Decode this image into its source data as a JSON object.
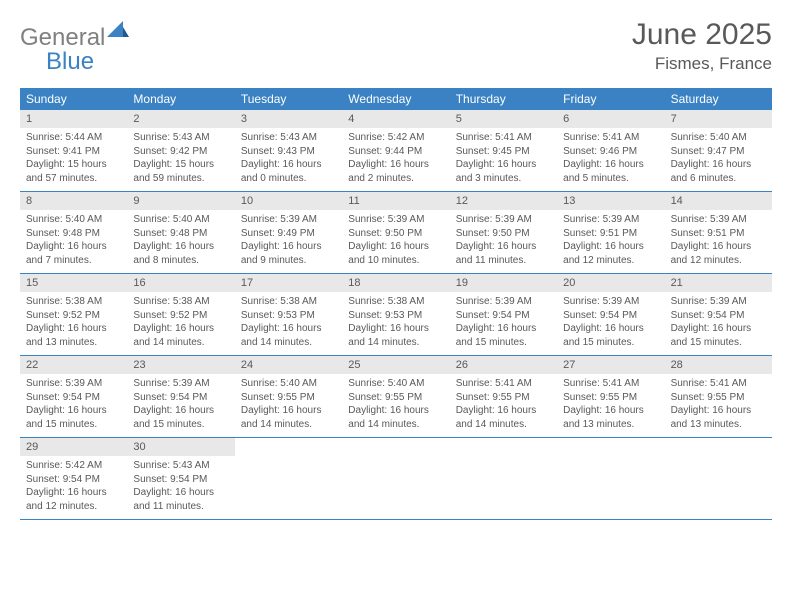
{
  "brand": {
    "part1": "General",
    "part2": "Blue"
  },
  "title": "June 2025",
  "location": "Fismes, France",
  "colors": {
    "header_bg": "#3b82c4",
    "daynum_bg": "#e8e8e8",
    "text": "#595959",
    "page_bg": "#ffffff"
  },
  "weekdays": [
    "Sunday",
    "Monday",
    "Tuesday",
    "Wednesday",
    "Thursday",
    "Friday",
    "Saturday"
  ],
  "weeks": [
    [
      {
        "n": "1",
        "sr": "5:44 AM",
        "ss": "9:41 PM",
        "dl": "15 hours and 57 minutes."
      },
      {
        "n": "2",
        "sr": "5:43 AM",
        "ss": "9:42 PM",
        "dl": "15 hours and 59 minutes."
      },
      {
        "n": "3",
        "sr": "5:43 AM",
        "ss": "9:43 PM",
        "dl": "16 hours and 0 minutes."
      },
      {
        "n": "4",
        "sr": "5:42 AM",
        "ss": "9:44 PM",
        "dl": "16 hours and 2 minutes."
      },
      {
        "n": "5",
        "sr": "5:41 AM",
        "ss": "9:45 PM",
        "dl": "16 hours and 3 minutes."
      },
      {
        "n": "6",
        "sr": "5:41 AM",
        "ss": "9:46 PM",
        "dl": "16 hours and 5 minutes."
      },
      {
        "n": "7",
        "sr": "5:40 AM",
        "ss": "9:47 PM",
        "dl": "16 hours and 6 minutes."
      }
    ],
    [
      {
        "n": "8",
        "sr": "5:40 AM",
        "ss": "9:48 PM",
        "dl": "16 hours and 7 minutes."
      },
      {
        "n": "9",
        "sr": "5:40 AM",
        "ss": "9:48 PM",
        "dl": "16 hours and 8 minutes."
      },
      {
        "n": "10",
        "sr": "5:39 AM",
        "ss": "9:49 PM",
        "dl": "16 hours and 9 minutes."
      },
      {
        "n": "11",
        "sr": "5:39 AM",
        "ss": "9:50 PM",
        "dl": "16 hours and 10 minutes."
      },
      {
        "n": "12",
        "sr": "5:39 AM",
        "ss": "9:50 PM",
        "dl": "16 hours and 11 minutes."
      },
      {
        "n": "13",
        "sr": "5:39 AM",
        "ss": "9:51 PM",
        "dl": "16 hours and 12 minutes."
      },
      {
        "n": "14",
        "sr": "5:39 AM",
        "ss": "9:51 PM",
        "dl": "16 hours and 12 minutes."
      }
    ],
    [
      {
        "n": "15",
        "sr": "5:38 AM",
        "ss": "9:52 PM",
        "dl": "16 hours and 13 minutes."
      },
      {
        "n": "16",
        "sr": "5:38 AM",
        "ss": "9:52 PM",
        "dl": "16 hours and 14 minutes."
      },
      {
        "n": "17",
        "sr": "5:38 AM",
        "ss": "9:53 PM",
        "dl": "16 hours and 14 minutes."
      },
      {
        "n": "18",
        "sr": "5:38 AM",
        "ss": "9:53 PM",
        "dl": "16 hours and 14 minutes."
      },
      {
        "n": "19",
        "sr": "5:39 AM",
        "ss": "9:54 PM",
        "dl": "16 hours and 15 minutes."
      },
      {
        "n": "20",
        "sr": "5:39 AM",
        "ss": "9:54 PM",
        "dl": "16 hours and 15 minutes."
      },
      {
        "n": "21",
        "sr": "5:39 AM",
        "ss": "9:54 PM",
        "dl": "16 hours and 15 minutes."
      }
    ],
    [
      {
        "n": "22",
        "sr": "5:39 AM",
        "ss": "9:54 PM",
        "dl": "16 hours and 15 minutes."
      },
      {
        "n": "23",
        "sr": "5:39 AM",
        "ss": "9:54 PM",
        "dl": "16 hours and 15 minutes."
      },
      {
        "n": "24",
        "sr": "5:40 AM",
        "ss": "9:55 PM",
        "dl": "16 hours and 14 minutes."
      },
      {
        "n": "25",
        "sr": "5:40 AM",
        "ss": "9:55 PM",
        "dl": "16 hours and 14 minutes."
      },
      {
        "n": "26",
        "sr": "5:41 AM",
        "ss": "9:55 PM",
        "dl": "16 hours and 14 minutes."
      },
      {
        "n": "27",
        "sr": "5:41 AM",
        "ss": "9:55 PM",
        "dl": "16 hours and 13 minutes."
      },
      {
        "n": "28",
        "sr": "5:41 AM",
        "ss": "9:55 PM",
        "dl": "16 hours and 13 minutes."
      }
    ],
    [
      {
        "n": "29",
        "sr": "5:42 AM",
        "ss": "9:54 PM",
        "dl": "16 hours and 12 minutes."
      },
      {
        "n": "30",
        "sr": "5:43 AM",
        "ss": "9:54 PM",
        "dl": "16 hours and 11 minutes."
      },
      null,
      null,
      null,
      null,
      null
    ]
  ],
  "labels": {
    "sunrise": "Sunrise: ",
    "sunset": "Sunset: ",
    "daylight": "Daylight: "
  }
}
